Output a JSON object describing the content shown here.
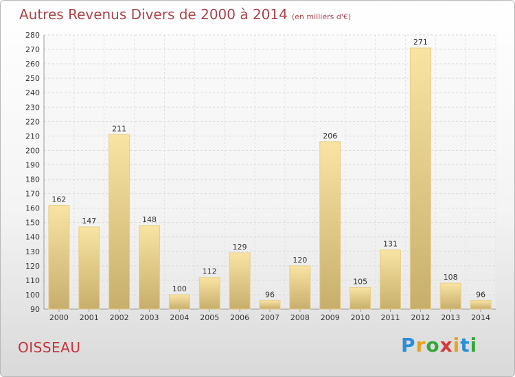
{
  "header": {
    "title": "Autres Revenus Divers de 2000 à 2014",
    "unit_note": "(en milliers d'€)"
  },
  "footer": {
    "commune": "OISSEAU",
    "logo_text": "Proxiti"
  },
  "colors": {
    "title": "#a9434a",
    "bar_light": "#f9e4a3",
    "bar_dark": "#c7ae6c",
    "commune": "#c2343b"
  },
  "chart_data": {
    "type": "bar",
    "categories": [
      "2000",
      "2001",
      "2002",
      "2003",
      "2004",
      "2005",
      "2006",
      "2007",
      "2008",
      "2009",
      "2010",
      "2011",
      "2012",
      "2013",
      "2014"
    ],
    "values": [
      162,
      147,
      211,
      148,
      100,
      112,
      129,
      96,
      120,
      206,
      105,
      131,
      271,
      108,
      96
    ],
    "ylim": [
      90,
      280
    ],
    "yticks": [
      90,
      100,
      110,
      120,
      130,
      140,
      150,
      160,
      170,
      180,
      190,
      200,
      210,
      220,
      230,
      240,
      250,
      260,
      270,
      280
    ],
    "grid": true,
    "legend": "none"
  }
}
